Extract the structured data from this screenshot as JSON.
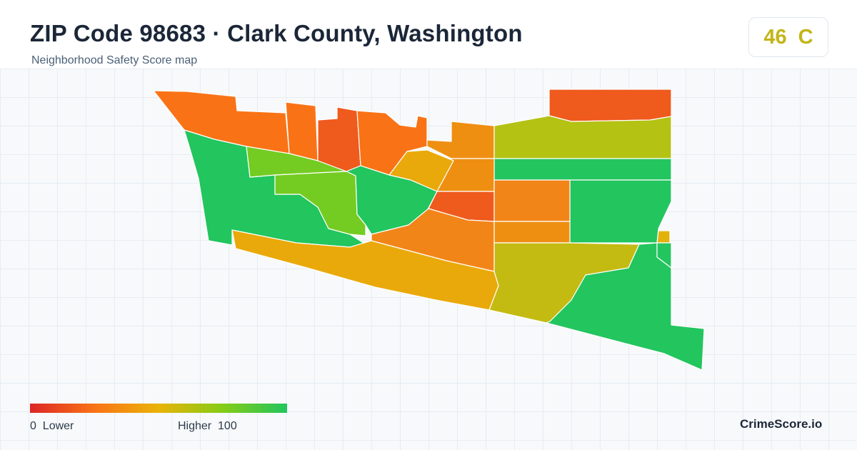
{
  "header": {
    "title": "ZIP Code 98683 · Clark County, Washington",
    "subtitle": "Neighborhood Safety Score map"
  },
  "score": {
    "value": "46",
    "grade": "C",
    "color": "#c2b518"
  },
  "legend": {
    "min": "0",
    "min_label": "Lower",
    "max_label": "Higher",
    "max": "100",
    "colors": [
      "#dc2626",
      "#f97316",
      "#eab308",
      "#84cc16",
      "#22c55e"
    ]
  },
  "brand": "CrimeScore.io",
  "map": {
    "regions": [
      {
        "color": "#f97316"
      },
      {
        "color": "#f97316"
      },
      {
        "color": "#ef5a1d"
      },
      {
        "color": "#f97316"
      },
      {
        "color": "#ee8f12"
      },
      {
        "color": "#ef5a1d"
      },
      {
        "color": "#b4c214"
      },
      {
        "color": "#22c55e"
      },
      {
        "color": "#22c55e"
      },
      {
        "color": "#74cc22"
      },
      {
        "color": "#74cc22"
      },
      {
        "color": "#22c55e"
      },
      {
        "color": "#eaa90a"
      },
      {
        "color": "#ee8f12"
      },
      {
        "color": "#ef5a1d"
      },
      {
        "color": "#f28518"
      },
      {
        "color": "#22c55e"
      },
      {
        "color": "#f28518"
      },
      {
        "color": "#ee8f12"
      },
      {
        "color": "#eaa90a"
      },
      {
        "color": "#c3bb12"
      },
      {
        "color": "#22c55e"
      },
      {
        "color": "#e2b20c"
      },
      {
        "color": "#22c55e"
      }
    ]
  }
}
